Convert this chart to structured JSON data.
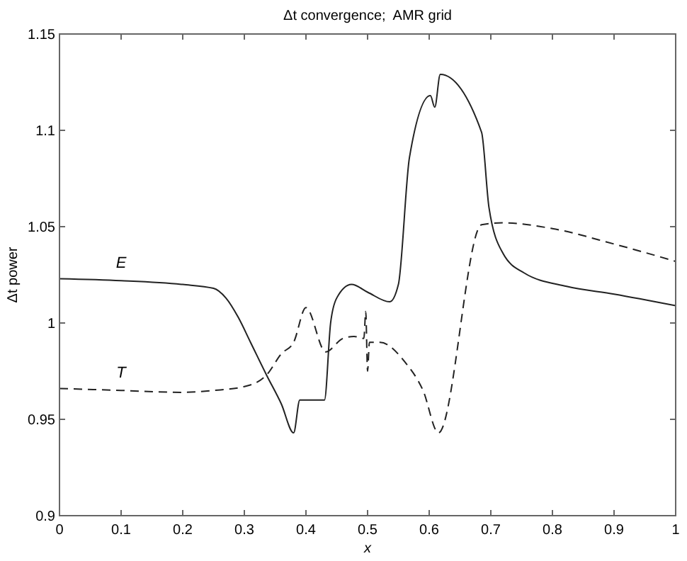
{
  "chart_data": {
    "type": "line",
    "title": "Δt convergence;  AMR grid",
    "xlabel": "x",
    "ylabel": "Δt power",
    "xlim": [
      0,
      1
    ],
    "xticks": [
      0,
      0.1,
      0.2,
      0.3,
      0.4,
      0.5,
      0.6,
      0.7,
      0.8,
      0.9,
      1
    ],
    "ylim": [
      0.9,
      1.15
    ],
    "yticks": [
      0.9,
      0.95,
      1,
      1.05,
      1.1,
      1.15
    ],
    "grid": false,
    "marker": "none",
    "series": [
      {
        "name": "E",
        "color": "#222222",
        "line_style": "solid",
        "x": [
          0,
          0.1,
          0.2,
          0.25,
          0.27,
          0.29,
          0.31,
          0.336,
          0.36,
          0.38,
          0.39,
          0.43,
          0.44,
          0.45,
          0.474,
          0.5,
          0.536,
          0.55,
          0.568,
          0.602,
          0.609,
          0.618,
          0.685,
          0.697,
          0.72,
          0.754,
          0.823,
          0.9,
          1
        ],
        "values": [
          1.023,
          1.022,
          1.02,
          1.018,
          1.013,
          1.003,
          0.99,
          0.973,
          0.958,
          0.943,
          0.96,
          0.96,
          1,
          1.013,
          1.02,
          1.016,
          1.011,
          1.02,
          1.086,
          1.118,
          1.112,
          1.129,
          1.099,
          1.06,
          1.036,
          1.026,
          1.019,
          1.015,
          1.009
        ]
      },
      {
        "name": "T",
        "color": "#222222",
        "line_style": "dashed",
        "x": [
          0,
          0.1,
          0.2,
          0.25,
          0.3,
          0.336,
          0.36,
          0.38,
          0.4,
          0.432,
          0.46,
          0.478,
          0.494,
          0.497,
          0.5,
          0.503,
          0.52,
          0.56,
          0.59,
          0.615,
          0.685,
          0.72,
          0.8,
          0.9,
          1
        ],
        "values": [
          0.966,
          0.965,
          0.964,
          0.965,
          0.967,
          0.973,
          0.984,
          0.99,
          1.008,
          0.985,
          0.992,
          0.993,
          0.992,
          1.006,
          0.975,
          0.99,
          0.99,
          0.98,
          0.965,
          0.943,
          1.051,
          1.052,
          1.049,
          1.041,
          1.032
        ]
      }
    ]
  }
}
